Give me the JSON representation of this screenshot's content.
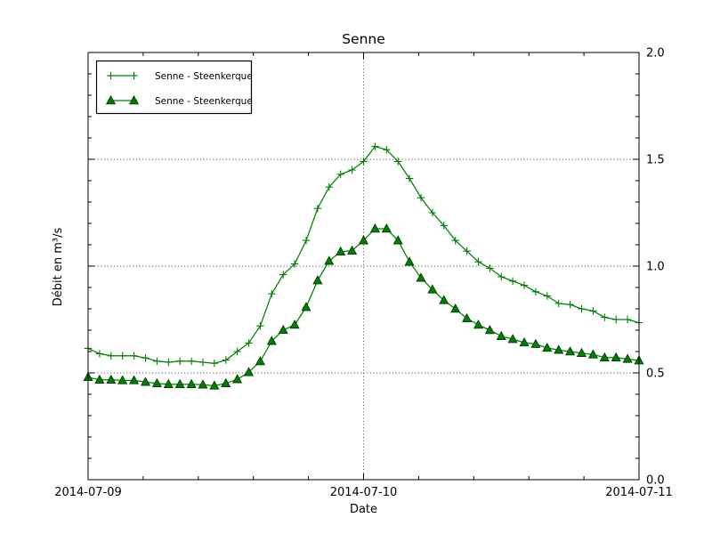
{
  "chart_data": {
    "type": "line",
    "title": "Senne",
    "xlabel": "Date",
    "ylabel": "Débit en m³/s",
    "x_unit": "hours since 2014-07-09 00:00",
    "x": [
      0,
      1,
      2,
      3,
      4,
      5,
      6,
      7,
      8,
      9,
      10,
      11,
      12,
      13,
      14,
      15,
      16,
      17,
      18,
      19,
      20,
      21,
      22,
      23,
      24,
      25,
      26,
      27,
      28,
      29,
      30,
      31,
      32,
      33,
      34,
      35,
      36,
      37,
      38,
      39,
      40,
      41,
      42,
      43,
      44,
      45,
      46,
      47,
      48
    ],
    "series": [
      {
        "name": "Senne - Steenkerque",
        "marker": "plus",
        "color": "#008000",
        "values": [
          0.615,
          0.59,
          0.58,
          0.58,
          0.58,
          0.57,
          0.555,
          0.55,
          0.555,
          0.555,
          0.55,
          0.545,
          0.56,
          0.6,
          0.64,
          0.72,
          0.87,
          0.96,
          1.01,
          1.12,
          1.27,
          1.37,
          1.43,
          1.45,
          1.49,
          1.56,
          1.545,
          1.49,
          1.41,
          1.32,
          1.25,
          1.19,
          1.12,
          1.07,
          1.02,
          0.99,
          0.95,
          0.93,
          0.91,
          0.88,
          0.86,
          0.825,
          0.82,
          0.8,
          0.79,
          0.76,
          0.75,
          0.75,
          0.735
        ]
      },
      {
        "name": "Senne - Steenkerque",
        "marker": "triangle",
        "color": "#008000",
        "marker_edge": "#013d01",
        "values": [
          0.48,
          0.468,
          0.468,
          0.465,
          0.465,
          0.457,
          0.451,
          0.447,
          0.447,
          0.447,
          0.445,
          0.44,
          0.451,
          0.47,
          0.503,
          0.554,
          0.649,
          0.701,
          0.725,
          0.808,
          0.933,
          1.024,
          1.068,
          1.072,
          1.12,
          1.175,
          1.175,
          1.12,
          1.02,
          0.945,
          0.89,
          0.84,
          0.8,
          0.755,
          0.725,
          0.7,
          0.672,
          0.658,
          0.642,
          0.635,
          0.617,
          0.607,
          0.6,
          0.593,
          0.586,
          0.572,
          0.572,
          0.565,
          0.558
        ]
      }
    ],
    "xlim": [
      0,
      48
    ],
    "ylim": [
      0.0,
      2.0
    ],
    "x_ticks": [
      {
        "pos": 0,
        "label": "2014-07-09"
      },
      {
        "pos": 24,
        "label": "2014-07-10"
      },
      {
        "pos": 48,
        "label": "2014-07-11"
      }
    ],
    "x_minor_step_hours": 4.8,
    "y_ticks": [
      {
        "pos": 0.0,
        "label": "0.0"
      },
      {
        "pos": 0.5,
        "label": "0.5"
      },
      {
        "pos": 1.0,
        "label": "1.0"
      },
      {
        "pos": 1.5,
        "label": "1.5"
      },
      {
        "pos": 2.0,
        "label": "2.0"
      }
    ],
    "y_minor_step": 0.1,
    "y_tick_side": "right",
    "grid": {
      "h_lines": [
        0.5,
        1.0,
        1.5
      ],
      "v_lines_hours": [
        24
      ],
      "style": "dotted"
    },
    "legend": {
      "position": "upper-left",
      "entries": [
        "Senne - Steenkerque",
        "Senne - Steenkerque"
      ]
    }
  }
}
